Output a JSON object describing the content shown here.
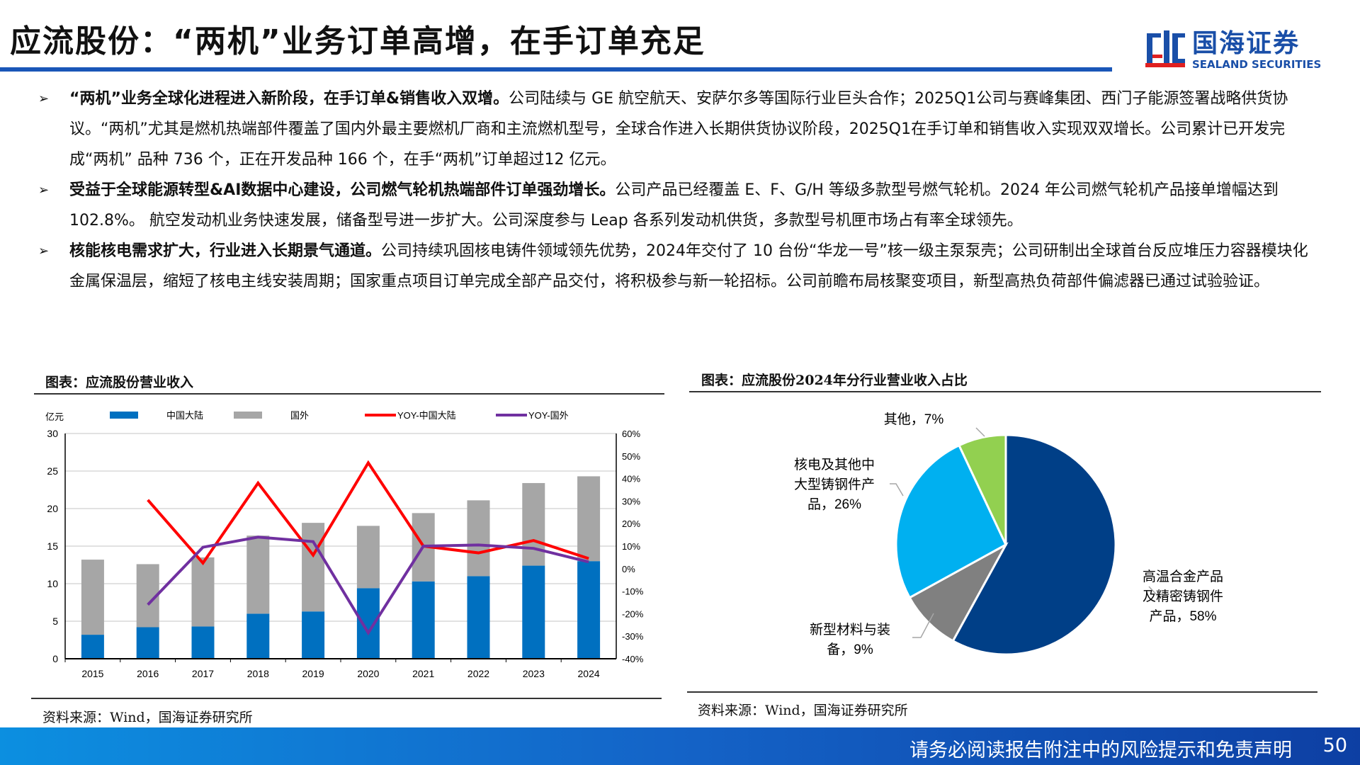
{
  "header": {
    "title": "应流股份：“两机”业务订单高增，在手订单充足",
    "logo_cn": "国海证券",
    "logo_en": "SEALAND SECURITIES"
  },
  "bullets": [
    {
      "bold": "“两机”业务全球化进程进入新阶段，在手订单&销售收入双增。",
      "text": "公司陆续与 GE 航空航天、安萨尔多等国际行业巨头合作；2025Q1公司与赛峰集团、西门子能源签署战略供货协议。“两机”尤其是燃机热端部件覆盖了国内外最主要燃机厂商和主流燃机型号，全球合作进入长期供货协议阶段，2025Q1在手订单和销售收入实现双双增长。公司累计已开发完成“两机” 品种 736 个，正在开发品种 166 个，在手“两机”订单超过12 亿元。"
    },
    {
      "bold": "受益于全球能源转型&AI数据中心建设，公司燃气轮机热端部件订单强劲增长。",
      "text": "公司产品已经覆盖 E、F、G/H 等级多款型号燃气轮机。2024 年公司燃气轮机产品接单增幅达到102.8%。 航空发动机业务快速发展，储备型号进一步扩大。公司深度参与 Leap 各系列发动机供货，多款型号机匣市场占有率全球领先。"
    },
    {
      "bold": "核能核电需求扩大，行业进入长期景气通道。",
      "text": "公司持续巩固核电铸件领域领先优势，2024年交付了 10 台份“华龙一号”核一级主泵泵壳；公司研制出全球首台反应堆压力容器模块化金属保温层，缩短了核电主线安装周期；国家重点项目订单完成全部产品交付，将积极参与新一轮招标。公司前瞻布局核聚变项目，新型高热负荷部件偏滤器已通过试验验证。"
    }
  ],
  "chart_left": {
    "title": "图表：应流股份营业收入",
    "source": "资料来源：Wind，国海证券研究所"
  },
  "chart_right": {
    "title": "图表：应流股份2024年分行业营业收入占比",
    "source": "资料来源：Wind，国海证券研究所"
  },
  "footer": {
    "disclaimer": "请务必阅读报告附注中的风险提示和免责声明",
    "page": "50"
  },
  "chart_data": [
    {
      "type": "bar",
      "stacked": true,
      "unit_label": "亿元",
      "categories": [
        "2015",
        "2016",
        "2017",
        "2018",
        "2019",
        "2020",
        "2021",
        "2022",
        "2023",
        "2024"
      ],
      "series": [
        {
          "name": "中国大陆",
          "type": "bar",
          "axis": "left",
          "color": "#0070c0",
          "values": [
            3.2,
            4.2,
            4.3,
            6.0,
            6.3,
            9.4,
            10.3,
            11.0,
            12.4,
            13.0
          ]
        },
        {
          "name": "国外",
          "type": "bar",
          "axis": "left",
          "color": "#a6a6a6",
          "values": [
            10.0,
            8.4,
            9.2,
            10.4,
            11.8,
            8.3,
            9.1,
            10.1,
            11.0,
            11.3
          ]
        },
        {
          "name": "YOY-中国大陆",
          "type": "line",
          "axis": "right",
          "color": "#ff0000",
          "values": [
            null,
            30.5,
            2.5,
            38,
            6,
            47,
            10,
            7,
            12.5,
            4.5
          ]
        },
        {
          "name": "YOY-国外",
          "type": "line",
          "axis": "right",
          "color": "#7030a0",
          "values": [
            null,
            -16,
            9.5,
            14,
            12,
            -28.5,
            10,
            10.5,
            9,
            3
          ]
        }
      ],
      "ylim": [
        0,
        30
      ],
      "yticks": [
        "0",
        "5",
        "10",
        "15",
        "20",
        "25",
        "30"
      ],
      "y2lim": [
        -40,
        60
      ],
      "y2ticks": [
        "-40%",
        "-30%",
        "-20%",
        "-10%",
        "0%",
        "10%",
        "20%",
        "30%",
        "40%",
        "50%",
        "60%"
      ],
      "legend": "top",
      "grid": true
    },
    {
      "type": "pie",
      "slices": [
        {
          "label": "高温合金产品及精密铸钢件产品，58%",
          "value": 58,
          "color": "#003f87"
        },
        {
          "label": "新型材料与装备，9%",
          "value": 9,
          "color": "#808080"
        },
        {
          "label": "核电及其他中大型铸钢件产品，26%",
          "value": 26,
          "color": "#00b0f0"
        },
        {
          "label": "其他，7%",
          "value": 7,
          "color": "#92d050"
        }
      ]
    }
  ]
}
